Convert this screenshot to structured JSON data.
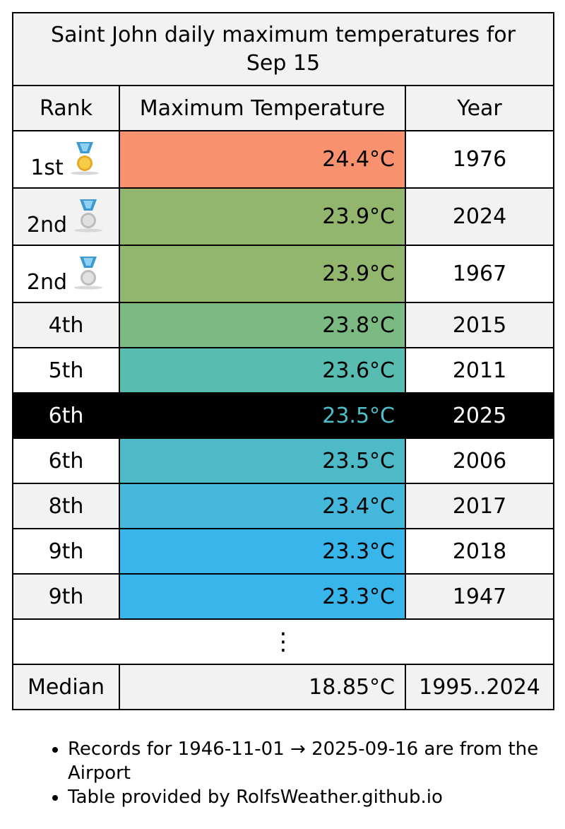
{
  "title": "Saint John daily maximum temperatures for Sep 15",
  "columns": {
    "rank": "Rank",
    "temp": "Maximum Temperature",
    "year": "Year"
  },
  "colors": {
    "gold": "#f7916e",
    "green1": "#93b66f",
    "green2": "#7bba82",
    "teal1": "#58bcb1",
    "teal2": "#4fbac7",
    "blue1": "#45b8db",
    "blue2": "#38b5ea",
    "highlight_text": "#4cbfc8"
  },
  "rows": [
    {
      "rank": "1st",
      "medal": "gold-medal-icon",
      "temp": "24.4°C",
      "year": "1976",
      "color": "#f7916e"
    },
    {
      "rank": "2nd",
      "medal": "silver-medal-icon",
      "temp": "23.9°C",
      "year": "2024",
      "color": "#93b66f"
    },
    {
      "rank": "2nd",
      "medal": "silver-medal-icon",
      "temp": "23.9°C",
      "year": "1967",
      "color": "#93b66f"
    },
    {
      "rank": "4th",
      "temp": "23.8°C",
      "year": "2015",
      "color": "#7bba82"
    },
    {
      "rank": "5th",
      "temp": "23.6°C",
      "year": "2011",
      "color": "#58bcb1"
    },
    {
      "rank": "6th",
      "temp": "23.5°C",
      "year": "2025",
      "highlight": true
    },
    {
      "rank": "6th",
      "temp": "23.5°C",
      "year": "2006",
      "color": "#4fbac7"
    },
    {
      "rank": "8th",
      "temp": "23.4°C",
      "year": "2017",
      "color": "#45b8db"
    },
    {
      "rank": "9th",
      "temp": "23.3°C",
      "year": "2018",
      "color": "#38b5ea"
    },
    {
      "rank": "9th",
      "temp": "23.3°C",
      "year": "1947",
      "color": "#38b5ea"
    }
  ],
  "ellipsis": "⋮",
  "median": {
    "label": "Median",
    "temp": "18.85°C",
    "years": "1995..2024"
  },
  "notes": [
    "Records for 1946-11-01 → 2025-09-16 are from the Airport",
    "Table provided by RolfsWeather.github.io"
  ]
}
